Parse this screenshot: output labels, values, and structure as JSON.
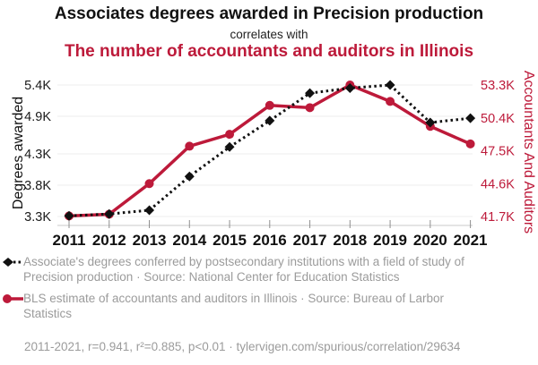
{
  "header": {
    "title": "Associates degrees awarded in Precision production",
    "connector": "correlates with",
    "subtitle": "The number of accountants and auditors in Illinois"
  },
  "colors": {
    "accent_red": "#bd1a3a",
    "series_black": "#111111",
    "legend_gray": "#9b9b9b",
    "grid_line": "#ececec",
    "axis_line": "#c9c9c9",
    "tick_mark": "#8f8f8f"
  },
  "chart_data": {
    "type": "line",
    "categories": [
      "2011",
      "2012",
      "2013",
      "2014",
      "2015",
      "2016",
      "2017",
      "2018",
      "2019",
      "2020",
      "2021"
    ],
    "series": [
      {
        "name": "Associates degrees awarded in Precision production",
        "axis": "left",
        "marker": "diamond",
        "line_style": "dotted",
        "color": "#111111",
        "values": [
          3310,
          3340,
          3400,
          3940,
          4410,
          4830,
          5270,
          5350,
          5400,
          4800,
          4870
        ]
      },
      {
        "name": "Accountants and auditors in Illinois",
        "axis": "right",
        "marker": "circle",
        "line_style": "solid",
        "color": "#bd1a3a",
        "values": [
          41750,
          41900,
          44600,
          47900,
          48950,
          51500,
          51300,
          53300,
          51850,
          49650,
          48100
        ]
      }
    ],
    "left_axis": {
      "label": "Degrees awarded",
      "tick_labels": [
        "3.3K",
        "3.8K",
        "4.3K",
        "4.9K",
        "5.4K"
      ],
      "tick_values": [
        3300,
        3800,
        4300,
        4900,
        5400
      ],
      "range": [
        3300,
        5400
      ]
    },
    "right_axis": {
      "label": "Accountants And Auditors",
      "tick_labels": [
        "41.7K",
        "44.6K",
        "47.5K",
        "50.4K",
        "53.3K"
      ],
      "tick_values": [
        41700,
        44600,
        47500,
        50400,
        53300
      ],
      "range": [
        41700,
        53300
      ]
    },
    "grid": true,
    "legend_position": "bottom"
  },
  "legend": {
    "items": [
      {
        "label": "Associate's degrees conferred by postsecondary institutions with a field of study of Precision production · Source: National Center for Education Statistics",
        "marker": "diamond-dotted",
        "color": "#111111"
      },
      {
        "label": "BLS estimate of accountants and auditors in Illinois · Source: Bureau of Larbor Statistics",
        "marker": "circle-solid",
        "color": "#bd1a3a"
      }
    ]
  },
  "footer": {
    "text": "2011-2021, r=0.941, r²=0.885, p<0.01 · tylervigen.com/spurious/correlation/29634"
  }
}
